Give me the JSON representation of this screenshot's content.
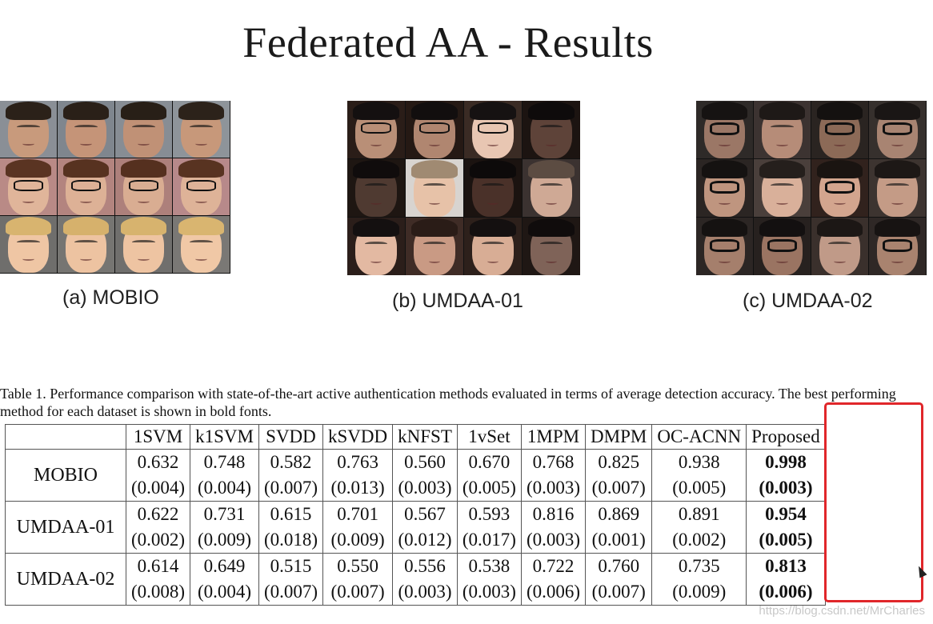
{
  "slide": {
    "title": "Federated AA - Results"
  },
  "datasets": [
    {
      "caption": "(a) MOBIO"
    },
    {
      "caption": "(b) UMDAA-01"
    },
    {
      "caption": "(c) UMDAA-02"
    }
  ],
  "table": {
    "caption": "Table 1. Performance comparison with state-of-the-art active authentication methods evaluated in terms of average detection accuracy. The best performing method for each dataset is shown in bold fonts.",
    "columns": [
      "1SVM",
      "k1SVM",
      "SVDD",
      "kSVDD",
      "kNFST",
      "1vSet",
      "1MPM",
      "DMPM",
      "OC-ACNN",
      "Proposed"
    ],
    "rows": [
      {
        "name": "MOBIO",
        "cells": [
          {
            "mean": "0.632",
            "std": "(0.004)"
          },
          {
            "mean": "0.748",
            "std": "(0.004)"
          },
          {
            "mean": "0.582",
            "std": "(0.007)"
          },
          {
            "mean": "0.763",
            "std": "(0.013)"
          },
          {
            "mean": "0.560",
            "std": "(0.003)"
          },
          {
            "mean": "0.670",
            "std": "(0.005)"
          },
          {
            "mean": "0.768",
            "std": "(0.003)"
          },
          {
            "mean": "0.825",
            "std": "(0.007)"
          },
          {
            "mean": "0.938",
            "std": "(0.005)"
          },
          {
            "mean": "0.998",
            "std": "(0.003)"
          }
        ]
      },
      {
        "name": "UMDAA-01",
        "cells": [
          {
            "mean": "0.622",
            "std": "(0.002)"
          },
          {
            "mean": "0.731",
            "std": "(0.009)"
          },
          {
            "mean": "0.615",
            "std": "(0.018)"
          },
          {
            "mean": "0.701",
            "std": "(0.009)"
          },
          {
            "mean": "0.567",
            "std": "(0.012)"
          },
          {
            "mean": "0.593",
            "std": "(0.017)"
          },
          {
            "mean": "0.816",
            "std": "(0.003)"
          },
          {
            "mean": "0.869",
            "std": "(0.001)"
          },
          {
            "mean": "0.891",
            "std": "(0.002)"
          },
          {
            "mean": "0.954",
            "std": "(0.005)"
          }
        ]
      },
      {
        "name": "UMDAA-02",
        "cells": [
          {
            "mean": "0.614",
            "std": "(0.008)"
          },
          {
            "mean": "0.649",
            "std": "(0.004)"
          },
          {
            "mean": "0.515",
            "std": "(0.007)"
          },
          {
            "mean": "0.550",
            "std": "(0.007)"
          },
          {
            "mean": "0.556",
            "std": "(0.003)"
          },
          {
            "mean": "0.538",
            "std": "(0.003)"
          },
          {
            "mean": "0.722",
            "std": "(0.006)"
          },
          {
            "mean": "0.760",
            "std": "(0.007)"
          },
          {
            "mean": "0.735",
            "std": "(0.009)"
          },
          {
            "mean": "0.813",
            "std": "(0.006)"
          }
        ]
      }
    ]
  },
  "watermark": "https://blog.csdn.net/MrCharles",
  "colors": {
    "highlight": "#e0262a"
  }
}
